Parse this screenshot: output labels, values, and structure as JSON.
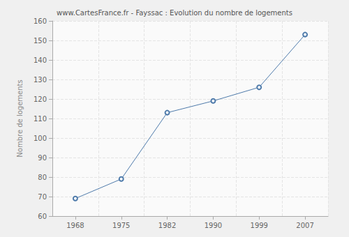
{
  "chart_data": {
    "type": "line",
    "title": "www.CartesFrance.fr - Fayssac : Evolution du nombre de logements",
    "y_label": "Nombre de logements",
    "categories": [
      "1968",
      "1975",
      "1982",
      "1990",
      "1999",
      "2007"
    ],
    "values": [
      69,
      79,
      113,
      119,
      126,
      153
    ],
    "color": "#4f7bab",
    "marker": "circle",
    "ylim": [
      60,
      160
    ],
    "yticks": [
      60,
      70,
      80,
      90,
      100,
      110,
      120,
      130,
      140,
      150,
      160
    ],
    "grid": true
  }
}
